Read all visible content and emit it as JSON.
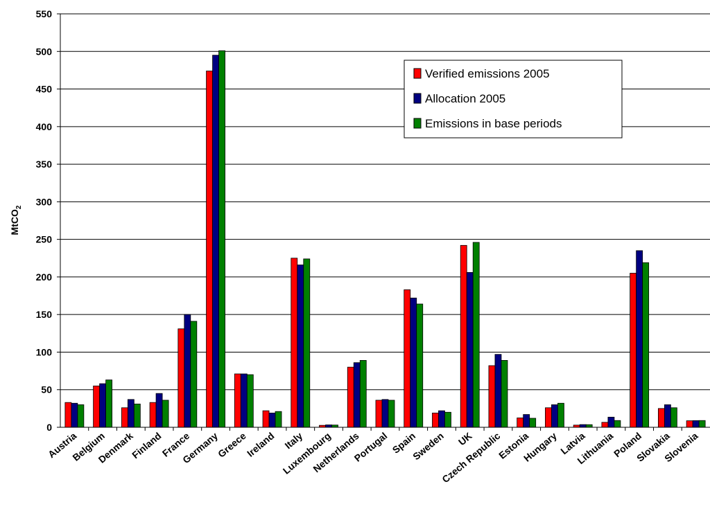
{
  "chart_data": {
    "type": "bar",
    "ylabel": "MtCO",
    "ylabel_subscript": "2",
    "ylim": [
      0,
      550
    ],
    "ytick_step": 50,
    "grid": true,
    "legend_position": "top-right",
    "categories": [
      "Austria",
      "Belgium",
      "Denmark",
      "Finland",
      "France",
      "Germany",
      "Greece",
      "Ireland",
      "Italy",
      "Luxembourg",
      "Netherlands",
      "Portugal",
      "Spain",
      "Sweden",
      "UK",
      "Czech Republic",
      "Estonia",
      "Hungary",
      "Latvia",
      "Lithuania",
      "Poland",
      "Slovakia",
      "Slovenia"
    ],
    "series": [
      {
        "name": "Verified emissions 2005",
        "color": "#ff0000",
        "values": [
          33,
          55,
          26,
          33,
          131,
          474,
          71,
          22,
          225,
          2.6,
          80,
          36,
          183,
          19,
          242,
          82,
          12.5,
          26,
          2.9,
          6.6,
          205,
          25,
          8.7
        ]
      },
      {
        "name": "Allocation 2005",
        "color": "#000080",
        "values": [
          32,
          58,
          37,
          45,
          150,
          495,
          71,
          19,
          216,
          3.2,
          86,
          37,
          172,
          22,
          206,
          97,
          17,
          30,
          3.6,
          13.5,
          235,
          30,
          8.9
        ]
      },
      {
        "name": "Emissions in base periods",
        "color": "#008000",
        "values": [
          30,
          63,
          31,
          36,
          141,
          501,
          70,
          21,
          224,
          3,
          89,
          36,
          164,
          20,
          246,
          89,
          12,
          32,
          3.5,
          9,
          219,
          26,
          9
        ]
      }
    ]
  }
}
